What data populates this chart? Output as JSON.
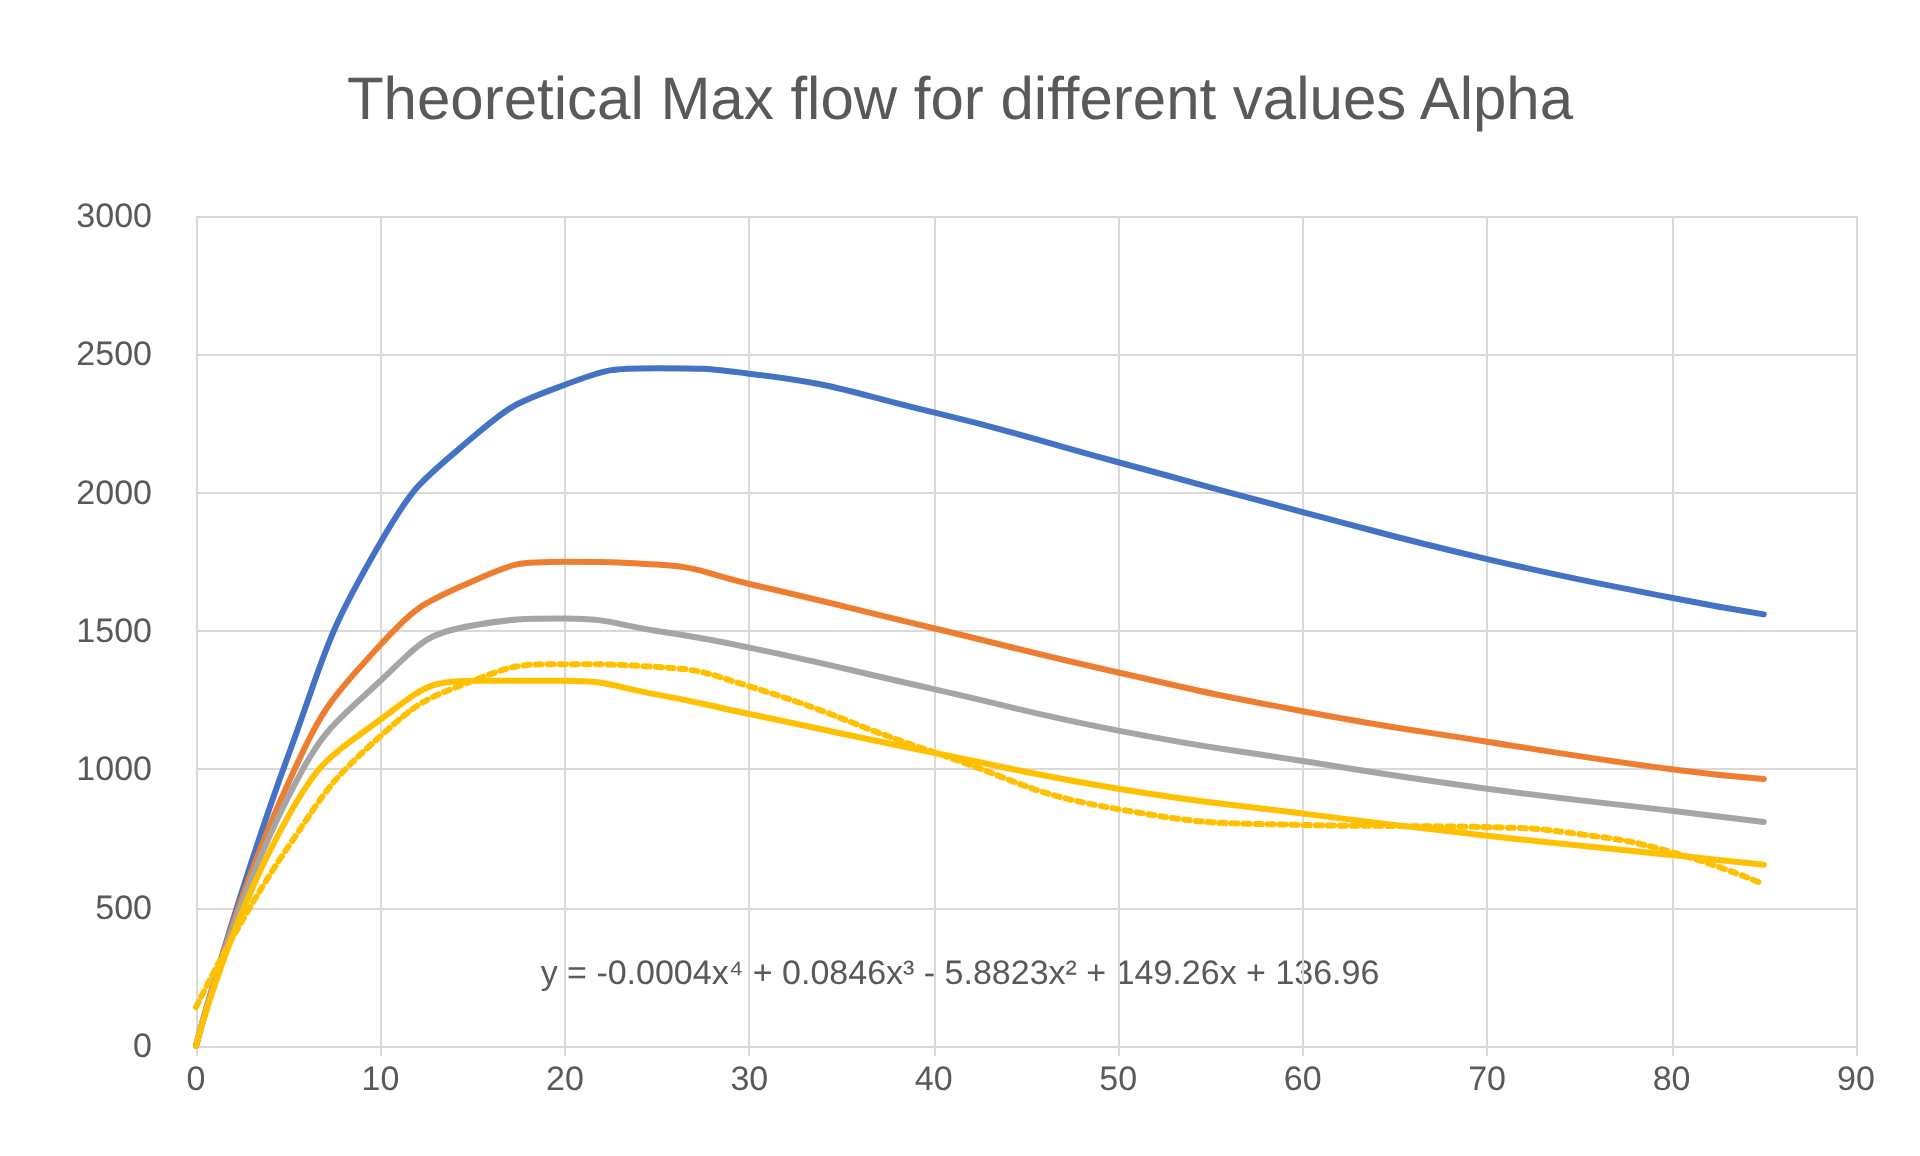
{
  "chart_data": {
    "type": "line",
    "title": "Theoretical Max flow for different values Alpha",
    "x": [
      0,
      5,
      10,
      15,
      20,
      25,
      30,
      40,
      50,
      60,
      70,
      80,
      85
    ],
    "series": [
      {
        "color": "#4472c4",
        "values": [
          0,
          1050,
          1820,
          2200,
          2390,
          2450,
          2430,
          2290,
          2110,
          1930,
          1760,
          1620,
          1560
        ]
      },
      {
        "color": "#ed7d31",
        "values": [
          0,
          950,
          1450,
          1680,
          1750,
          1740,
          1670,
          1510,
          1350,
          1210,
          1100,
          1000,
          965
        ]
      },
      {
        "color": "#a5a5a5",
        "values": [
          0,
          900,
          1320,
          1520,
          1545,
          1500,
          1440,
          1290,
          1140,
          1030,
          930,
          850,
          810
        ]
      },
      {
        "color": "#ffc000",
        "values": [
          0,
          830,
          1180,
          1320,
          1320,
          1270,
          1200,
          1060,
          930,
          840,
          760,
          690,
          655
        ]
      },
      {
        "color": "#ffc000",
        "line_style": "dotted",
        "x": [
          0,
          5,
          10,
          15,
          20,
          25,
          30,
          40,
          50,
          60,
          65,
          70,
          75,
          80,
          85
        ],
        "values": [
          140,
          720,
          1120,
          1320,
          1380,
          1370,
          1300,
          1062,
          856,
          799,
          795,
          791,
          766,
          701,
          585
        ]
      }
    ],
    "annotations": [
      "y = -0.0004x⁴ + 0.0846x³ - 5.8823x² + 149.26x + 136.96"
    ],
    "xlim": [
      0,
      90
    ],
    "xticks": [
      0,
      10,
      20,
      30,
      40,
      50,
      60,
      70,
      80,
      90
    ],
    "ylim": [
      0,
      3000
    ],
    "yticks": [
      0,
      500,
      1000,
      1500,
      2000,
      2500,
      3000
    ],
    "grid": true,
    "marker": "none",
    "line_style": "solid"
  }
}
